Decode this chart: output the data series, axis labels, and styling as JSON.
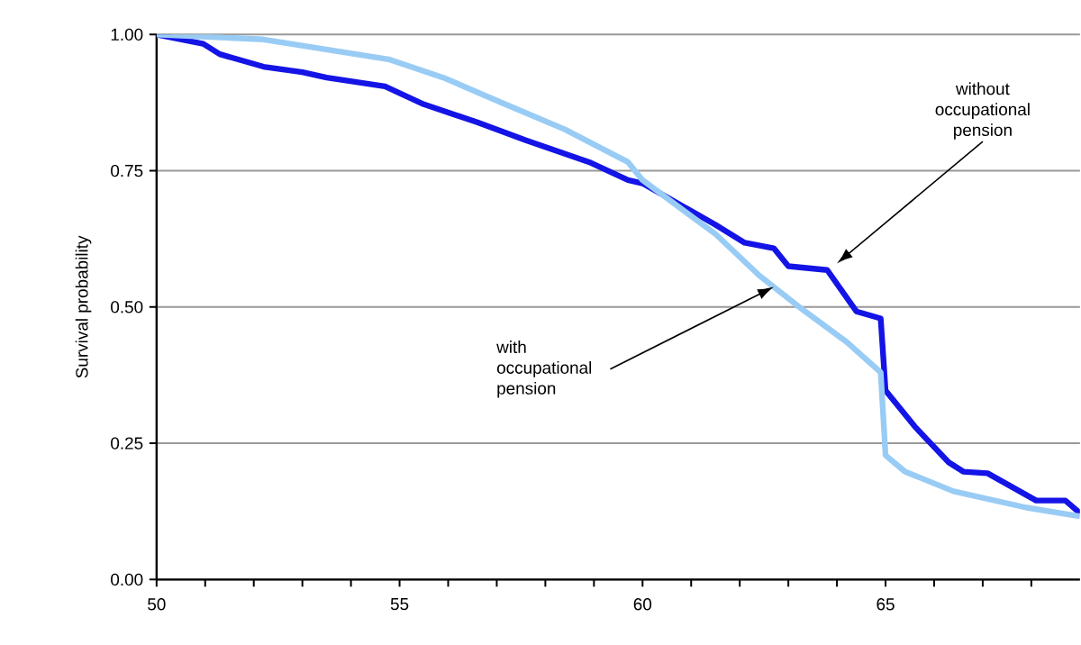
{
  "chart_data": {
    "type": "line",
    "ylabel": "Survival probability",
    "xlim": [
      50,
      69
    ],
    "ylim": [
      0,
      1
    ],
    "xticks": [
      50,
      {
        "value": 51,
        "label": null
      },
      {
        "value": 52,
        "label": null
      },
      {
        "value": 53,
        "label": null
      },
      {
        "value": 54,
        "label": null
      },
      55,
      {
        "value": 56,
        "label": null
      },
      {
        "value": 57,
        "label": null
      },
      {
        "value": 58,
        "label": null
      },
      {
        "value": 59,
        "label": null
      },
      60,
      {
        "value": 61,
        "label": null
      },
      {
        "value": 62,
        "label": null
      },
      {
        "value": 63,
        "label": null
      },
      {
        "value": 64,
        "label": null
      },
      65,
      {
        "value": 66,
        "label": null
      },
      {
        "value": 67,
        "label": null
      },
      {
        "value": 68,
        "label": null
      }
    ],
    "yticks": [
      {
        "value": 0,
        "label": "0.00"
      },
      {
        "value": 0.25,
        "label": "0.25"
      },
      {
        "value": 0.5,
        "label": "0.50"
      },
      {
        "value": 0.75,
        "label": "0.75"
      },
      {
        "value": 1,
        "label": "1.00"
      }
    ],
    "grid": "y",
    "marker": "none",
    "line_style": "solid",
    "series": [
      {
        "color": "#1414e6",
        "x": [
          50,
          50.96,
          51.3,
          52.2,
          53.0,
          53.5,
          54.7,
          55.5,
          56.6,
          57.6,
          58.9,
          59.7,
          60.0,
          61.5,
          62.1,
          62.7,
          63.0,
          63.8,
          64.4,
          64.9,
          65.0,
          65.6,
          66.3,
          66.6,
          67.1,
          68.1,
          68.7,
          69.0
        ],
        "values": [
          1.0,
          0.983,
          0.964,
          0.941,
          0.931,
          0.921,
          0.905,
          0.872,
          0.839,
          0.806,
          0.766,
          0.733,
          0.727,
          0.651,
          0.618,
          0.608,
          0.575,
          0.568,
          0.492,
          0.479,
          0.347,
          0.281,
          0.215,
          0.198,
          0.195,
          0.145,
          0.145,
          0.122
        ]
      },
      {
        "color": "#99ccf5",
        "x": [
          50,
          52.2,
          53.4,
          54.8,
          55.9,
          57.1,
          58.4,
          59.7,
          60.0,
          61.5,
          62.4,
          63.3,
          64.2,
          64.9,
          65.0,
          65.4,
          66.4,
          67.9,
          69.0
        ],
        "values": [
          1.0,
          0.991,
          0.974,
          0.954,
          0.921,
          0.875,
          0.826,
          0.766,
          0.733,
          0.634,
          0.558,
          0.495,
          0.436,
          0.38,
          0.228,
          0.198,
          0.162,
          0.132,
          0.116
        ]
      }
    ],
    "annotations": [
      {
        "text": "without occupational pension",
        "x": 64.0,
        "y": 0.58
      },
      {
        "text": "with occupational pension",
        "x": 62.7,
        "y": 0.537
      }
    ]
  }
}
